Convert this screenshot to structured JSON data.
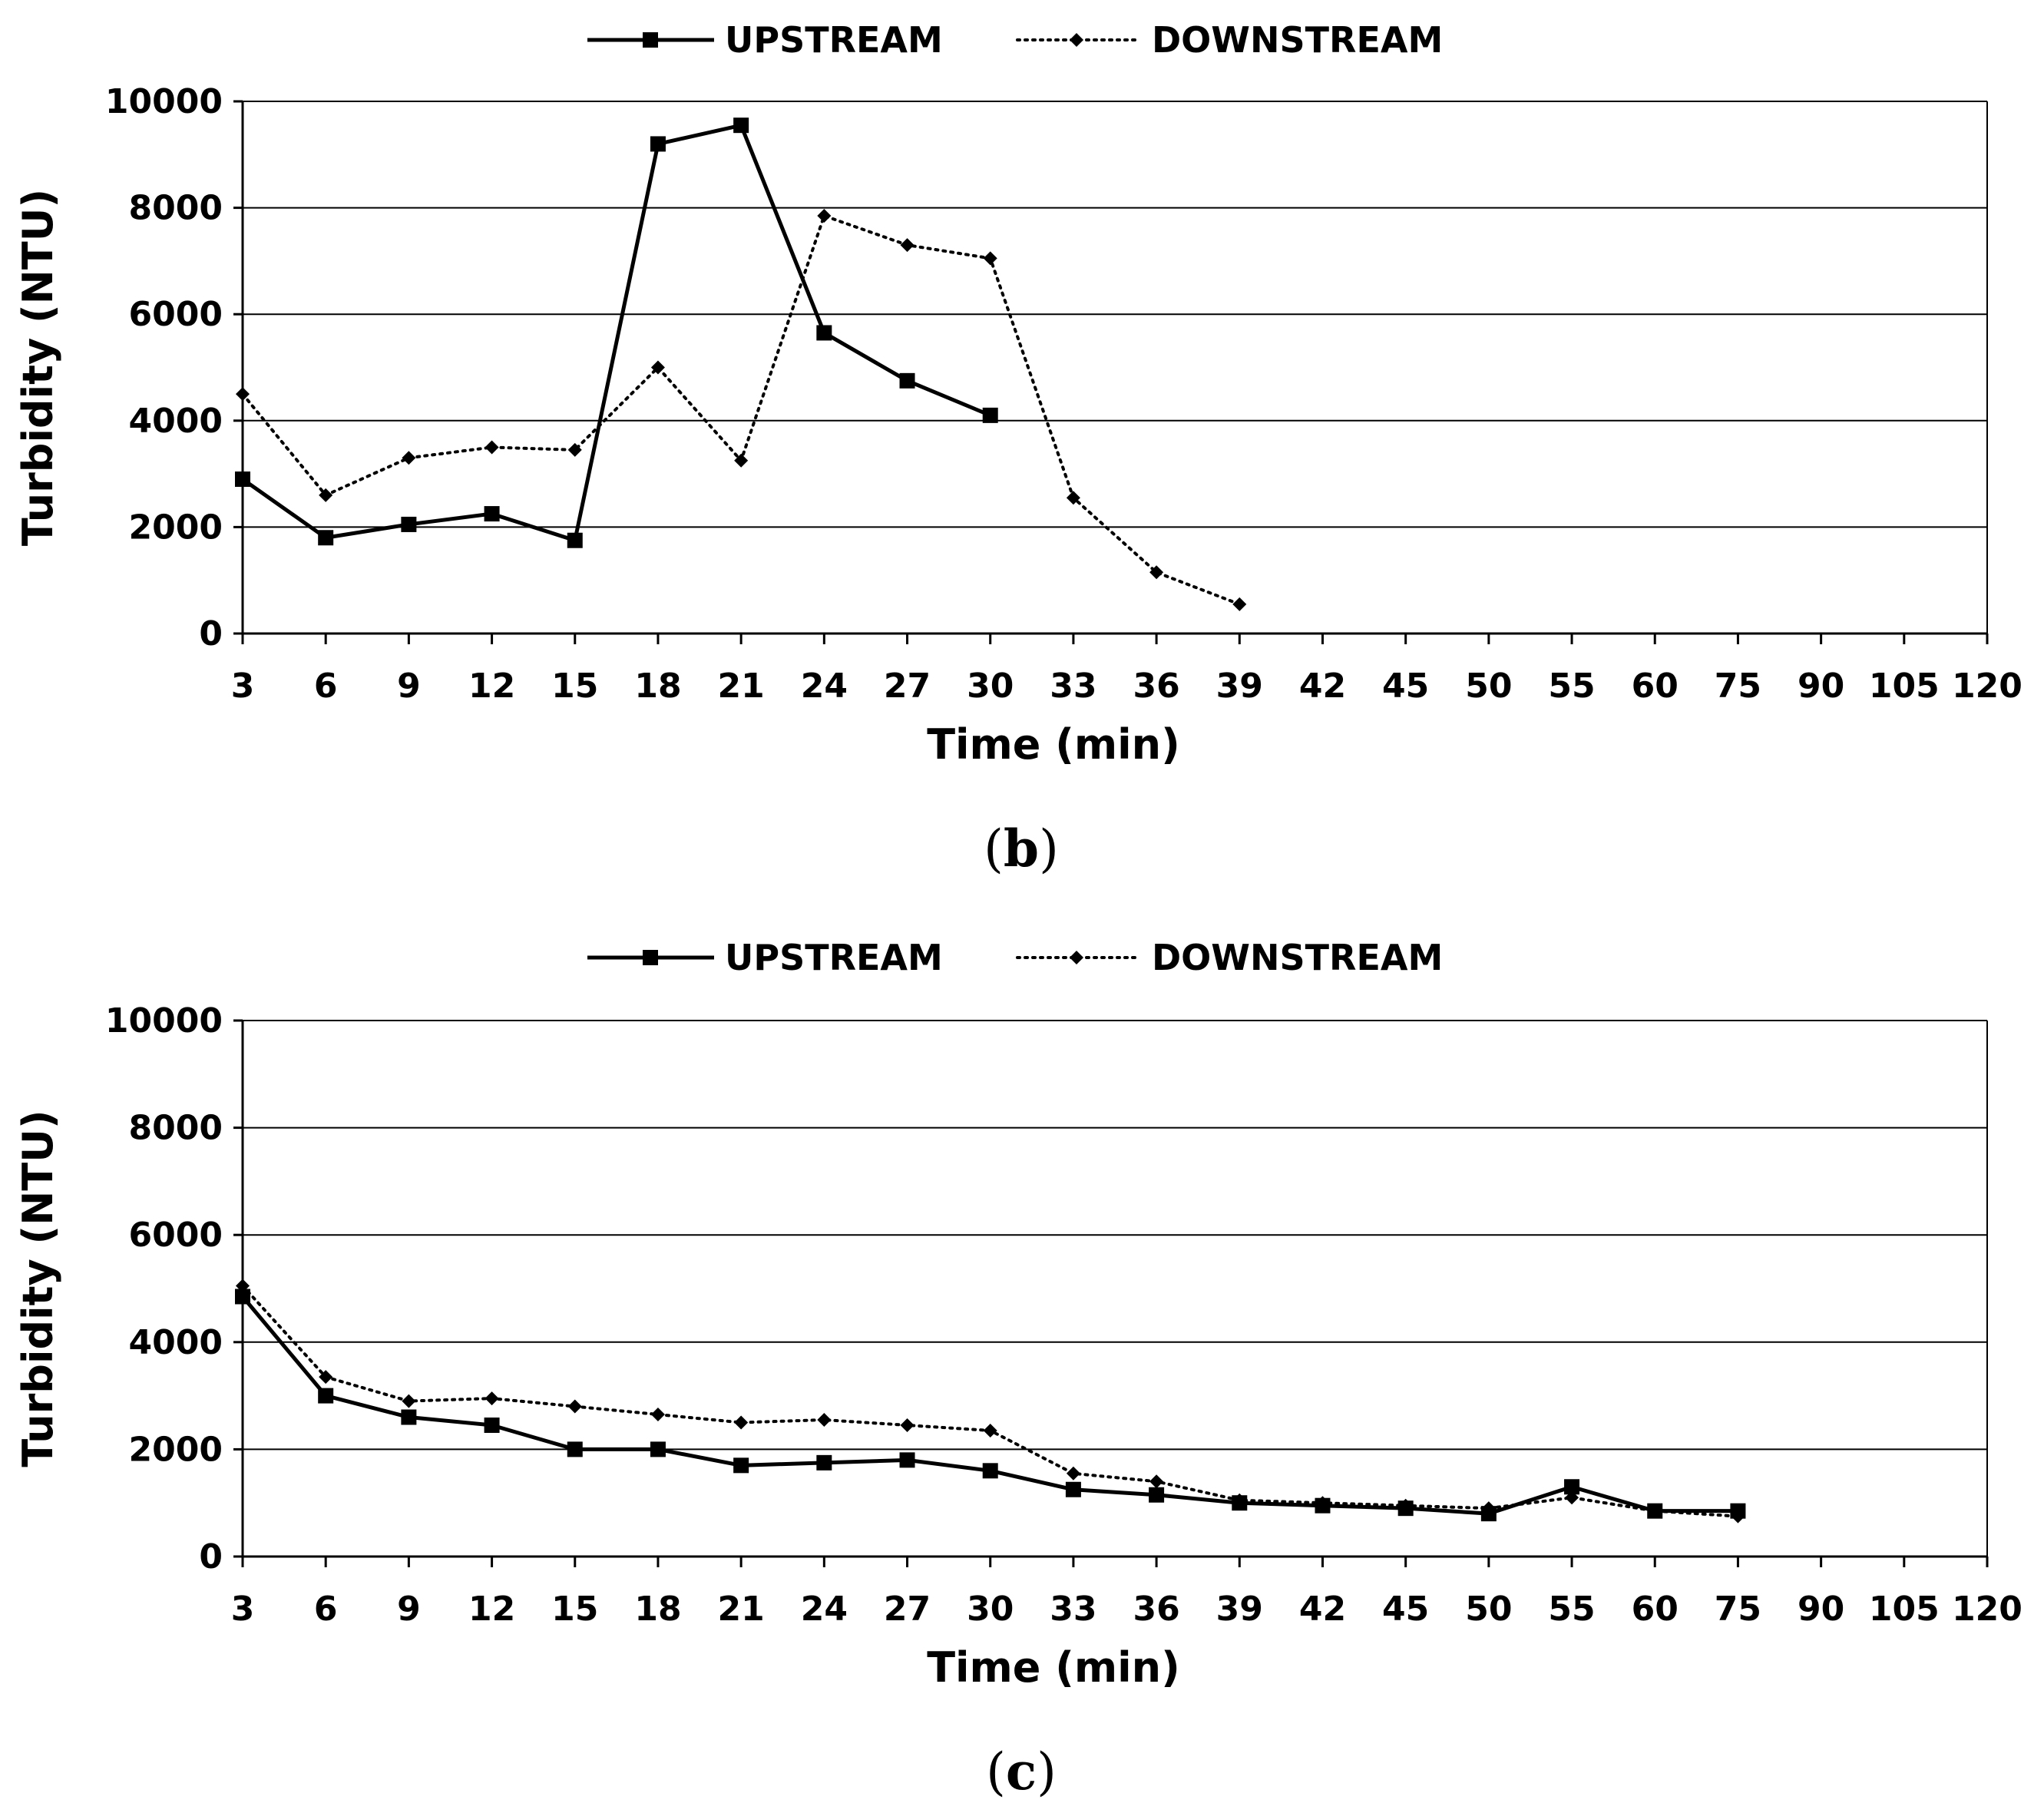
{
  "chart_data": [
    {
      "panel_label": "(b)",
      "panel_open": "(",
      "panel_letter": "b",
      "panel_close": ")",
      "type": "line",
      "xlabel": "Time (min)",
      "ylabel": "Turbidity (NTU)",
      "ylim": [
        0,
        10000
      ],
      "yticks": [
        "0",
        "2000",
        "4000",
        "6000",
        "8000",
        "10000"
      ],
      "grid": true,
      "legend": "top",
      "categories": [
        "3",
        "6",
        "9",
        "12",
        "15",
        "18",
        "21",
        "24",
        "27",
        "30",
        "33",
        "36",
        "39",
        "42",
        "45",
        "50",
        "55",
        "60",
        "75",
        "90",
        "105",
        "120"
      ],
      "series": [
        {
          "name": "UPSTREAM",
          "style": "solid",
          "marker": "square",
          "values": [
            2900,
            1800,
            2050,
            2250,
            1750,
            9200,
            9550,
            5650,
            4750,
            4100,
            null,
            null,
            null,
            null,
            null,
            null,
            null,
            null,
            null,
            null,
            null,
            null
          ]
        },
        {
          "name": "DOWNSTREAM",
          "style": "dotted",
          "marker": "diamond",
          "values": [
            4500,
            2600,
            3300,
            3500,
            3450,
            5000,
            3250,
            7850,
            7300,
            7050,
            2550,
            1150,
            550,
            null,
            null,
            null,
            null,
            null,
            null,
            null,
            null,
            null
          ]
        }
      ]
    },
    {
      "panel_label": "(c)",
      "panel_open": "(",
      "panel_letter": "c",
      "panel_close": ")",
      "type": "line",
      "xlabel": "Time (min)",
      "ylabel": "Turbidity (NTU)",
      "ylim": [
        0,
        10000
      ],
      "yticks": [
        "0",
        "2000",
        "4000",
        "6000",
        "8000",
        "10000"
      ],
      "grid": true,
      "legend": "top",
      "categories": [
        "3",
        "6",
        "9",
        "12",
        "15",
        "18",
        "21",
        "24",
        "27",
        "30",
        "33",
        "36",
        "39",
        "42",
        "45",
        "50",
        "55",
        "60",
        "75",
        "90",
        "105",
        "120"
      ],
      "series": [
        {
          "name": "UPSTREAM",
          "style": "solid",
          "marker": "square",
          "values": [
            4850,
            3000,
            2600,
            2450,
            2000,
            2000,
            1700,
            1750,
            1800,
            1600,
            1250,
            1150,
            1000,
            950,
            900,
            800,
            1300,
            850,
            850,
            null,
            null,
            null
          ]
        },
        {
          "name": "DOWNSTREAM",
          "style": "dotted",
          "marker": "diamond",
          "values": [
            5050,
            3350,
            2900,
            2950,
            2800,
            2650,
            2500,
            2550,
            2450,
            2350,
            1550,
            1400,
            1050,
            1000,
            950,
            900,
            1100,
            850,
            750,
            null,
            null,
            null
          ]
        }
      ]
    }
  ],
  "colors": {
    "line": "#000000",
    "grid": "#000000",
    "background": "#ffffff"
  }
}
